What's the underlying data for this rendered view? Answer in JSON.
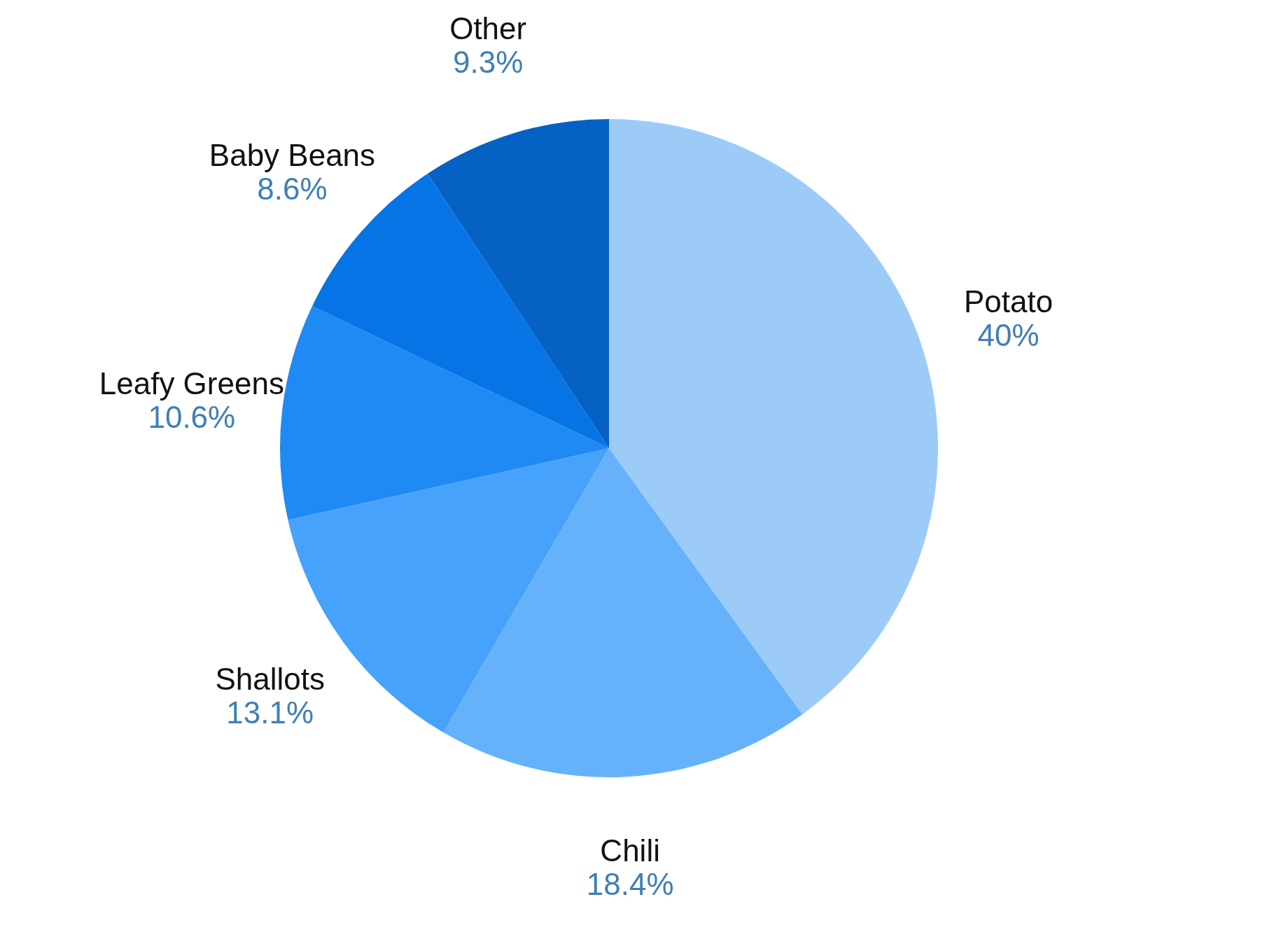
{
  "chart_data": {
    "type": "pie",
    "categories": [
      "Potato",
      "Chili",
      "Shallots",
      "Leafy Greens",
      "Baby Beans",
      "Other"
    ],
    "values": [
      40,
      18.4,
      13.1,
      10.6,
      8.6,
      9.3
    ],
    "value_labels": [
      "40%",
      "18.4%",
      "13.1%",
      "10.6%",
      "8.6%",
      "9.3%"
    ],
    "colors": [
      "#9ccbf8",
      "#65b2fa",
      "#47a2fb",
      "#1f89f4",
      "#0774e6",
      "#0562c4"
    ],
    "legend": false
  }
}
